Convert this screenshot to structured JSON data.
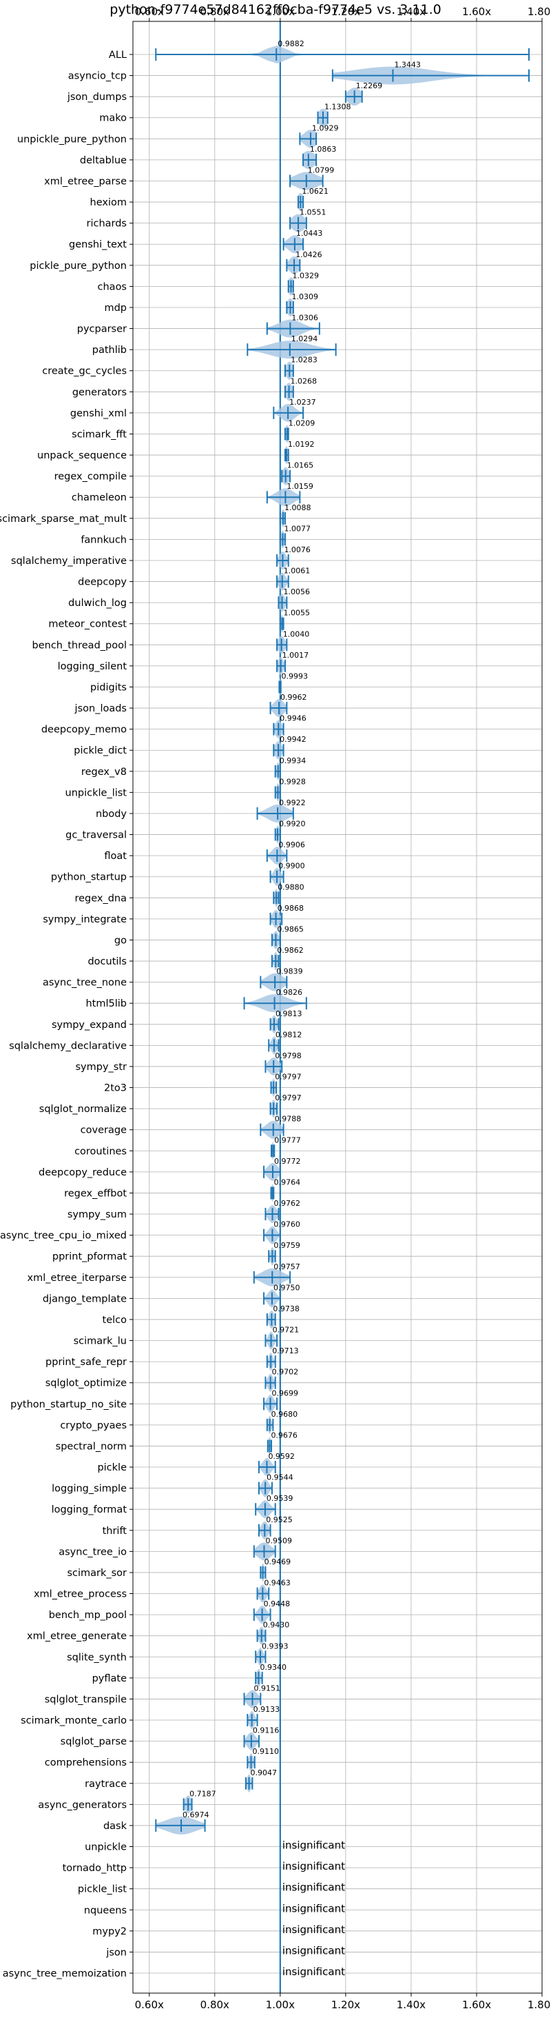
{
  "chart_data": {
    "type": "violin",
    "title": "python-f9774e57d84162ff0cba-f9774e5 vs. 3.11.0",
    "xlim": [
      0.55,
      1.8
    ],
    "xticks": [
      "0.60x",
      "0.80x",
      "1.00x",
      "1.20x",
      "1.40x",
      "1.60x",
      "1.80x"
    ],
    "xtick_values": [
      0.6,
      0.8,
      1.0,
      1.2,
      1.4,
      1.6,
      1.8
    ],
    "reference_line": 1.0,
    "grid": true,
    "colors": {
      "violin": "#a9c8e4",
      "line": "#1f77b4"
    },
    "insignificant_label": "insignificant",
    "benchmarks": [
      {
        "name": "ALL",
        "value": 0.9882,
        "label": "0.9882",
        "lo": 0.62,
        "hi": 1.76,
        "spread": 0.03
      },
      {
        "name": "asyncio_tcp",
        "value": 1.3443,
        "label": "1.3443",
        "lo": 1.16,
        "hi": 1.76,
        "spread": 0.12
      },
      {
        "name": "json_dumps",
        "value": 1.2269,
        "label": "1.2269",
        "lo": 1.2,
        "hi": 1.25,
        "spread": 0.02
      },
      {
        "name": "mako",
        "value": 1.1308,
        "label": "1.1308",
        "lo": 1.115,
        "hi": 1.145,
        "spread": 0.015
      },
      {
        "name": "unpickle_pure_python",
        "value": 1.0929,
        "label": "1.0929",
        "lo": 1.06,
        "hi": 1.11,
        "spread": 0.02
      },
      {
        "name": "deltablue",
        "value": 1.0863,
        "label": "1.0863",
        "lo": 1.07,
        "hi": 1.11,
        "spread": 0.02
      },
      {
        "name": "xml_etree_parse",
        "value": 1.0799,
        "label": "1.0799",
        "lo": 1.03,
        "hi": 1.13,
        "spread": 0.035
      },
      {
        "name": "hexiom",
        "value": 1.0621,
        "label": "1.0621",
        "lo": 1.055,
        "hi": 1.07,
        "spread": 0.01
      },
      {
        "name": "richards",
        "value": 1.0551,
        "label": "1.0551",
        "lo": 1.03,
        "hi": 1.08,
        "spread": 0.02
      },
      {
        "name": "genshi_text",
        "value": 1.0443,
        "label": "1.0443",
        "lo": 1.01,
        "hi": 1.07,
        "spread": 0.02
      },
      {
        "name": "pickle_pure_python",
        "value": 1.0426,
        "label": "1.0426",
        "lo": 1.02,
        "hi": 1.06,
        "spread": 0.015
      },
      {
        "name": "chaos",
        "value": 1.0329,
        "label": "1.0329",
        "lo": 1.025,
        "hi": 1.04,
        "spread": 0.01
      },
      {
        "name": "mdp",
        "value": 1.0309,
        "label": "1.0309",
        "lo": 1.02,
        "hi": 1.04,
        "spread": 0.01
      },
      {
        "name": "pycparser",
        "value": 1.0306,
        "label": "1.0306",
        "lo": 0.96,
        "hi": 1.12,
        "spread": 0.035
      },
      {
        "name": "pathlib",
        "value": 1.0294,
        "label": "1.0294",
        "lo": 0.9,
        "hi": 1.17,
        "spread": 0.06
      },
      {
        "name": "create_gc_cycles",
        "value": 1.0283,
        "label": "1.0283",
        "lo": 1.015,
        "hi": 1.04,
        "spread": 0.01
      },
      {
        "name": "generators",
        "value": 1.0268,
        "label": "1.0268",
        "lo": 1.015,
        "hi": 1.04,
        "spread": 0.01
      },
      {
        "name": "genshi_xml",
        "value": 1.0237,
        "label": "1.0237",
        "lo": 0.98,
        "hi": 1.07,
        "spread": 0.02
      },
      {
        "name": "scimark_fft",
        "value": 1.0209,
        "label": "1.0209",
        "lo": 1.015,
        "hi": 1.025,
        "spread": 0.005
      },
      {
        "name": "unpack_sequence",
        "value": 1.0192,
        "label": "1.0192",
        "lo": 1.015,
        "hi": 1.025,
        "spread": 0.005
      },
      {
        "name": "regex_compile",
        "value": 1.0165,
        "label": "1.0165",
        "lo": 1.005,
        "hi": 1.03,
        "spread": 0.01
      },
      {
        "name": "chameleon",
        "value": 1.0159,
        "label": "1.0159",
        "lo": 0.96,
        "hi": 1.06,
        "spread": 0.025
      },
      {
        "name": "scimark_sparse_mat_mult",
        "value": 1.0088,
        "label": "1.0088",
        "lo": 1.0,
        "hi": 1.015,
        "spread": 0.005
      },
      {
        "name": "fannkuch",
        "value": 1.0077,
        "label": "1.0077",
        "lo": 1.0,
        "hi": 1.015,
        "spread": 0.005
      },
      {
        "name": "sqlalchemy_imperative",
        "value": 1.0076,
        "label": "1.0076",
        "lo": 0.99,
        "hi": 1.025,
        "spread": 0.01
      },
      {
        "name": "deepcopy",
        "value": 1.0061,
        "label": "1.0061",
        "lo": 0.99,
        "hi": 1.025,
        "spread": 0.01
      },
      {
        "name": "dulwich_log",
        "value": 1.0056,
        "label": "1.0056",
        "lo": 0.995,
        "hi": 1.02,
        "spread": 0.008
      },
      {
        "name": "meteor_contest",
        "value": 1.0055,
        "label": "1.0055",
        "lo": 1.0,
        "hi": 1.01,
        "spread": 0.004
      },
      {
        "name": "bench_thread_pool",
        "value": 1.004,
        "label": "1.0040",
        "lo": 0.99,
        "hi": 1.02,
        "spread": 0.01
      },
      {
        "name": "logging_silent",
        "value": 1.0017,
        "label": "1.0017",
        "lo": 0.99,
        "hi": 1.015,
        "spread": 0.008
      },
      {
        "name": "pidigits",
        "value": 0.9993,
        "label": "0.9993",
        "lo": 0.997,
        "hi": 1.002,
        "spread": 0.002
      },
      {
        "name": "json_loads",
        "value": 0.9962,
        "label": "0.9962",
        "lo": 0.97,
        "hi": 1.02,
        "spread": 0.015
      },
      {
        "name": "deepcopy_memo",
        "value": 0.9946,
        "label": "0.9946",
        "lo": 0.98,
        "hi": 1.01,
        "spread": 0.01
      },
      {
        "name": "pickle_dict",
        "value": 0.9942,
        "label": "0.9942",
        "lo": 0.98,
        "hi": 1.01,
        "spread": 0.01
      },
      {
        "name": "regex_v8",
        "value": 0.9934,
        "label": "0.9934",
        "lo": 0.985,
        "hi": 1.0,
        "spread": 0.005
      },
      {
        "name": "unpickle_list",
        "value": 0.9928,
        "label": "0.9928",
        "lo": 0.985,
        "hi": 1.0,
        "spread": 0.005
      },
      {
        "name": "nbody",
        "value": 0.9922,
        "label": "0.9922",
        "lo": 0.93,
        "hi": 1.04,
        "spread": 0.03
      },
      {
        "name": "gc_traversal",
        "value": 0.992,
        "label": "0.9920",
        "lo": 0.985,
        "hi": 1.0,
        "spread": 0.005
      },
      {
        "name": "float",
        "value": 0.9906,
        "label": "0.9906",
        "lo": 0.96,
        "hi": 1.02,
        "spread": 0.015
      },
      {
        "name": "python_startup",
        "value": 0.99,
        "label": "0.9900",
        "lo": 0.97,
        "hi": 1.01,
        "spread": 0.01
      },
      {
        "name": "regex_dna",
        "value": 0.988,
        "label": "0.9880",
        "lo": 0.98,
        "hi": 0.995,
        "spread": 0.005
      },
      {
        "name": "sympy_integrate",
        "value": 0.9868,
        "label": "0.9868",
        "lo": 0.97,
        "hi": 1.005,
        "spread": 0.01
      },
      {
        "name": "go",
        "value": 0.9865,
        "label": "0.9865",
        "lo": 0.975,
        "hi": 1.0,
        "spread": 0.008
      },
      {
        "name": "docutils",
        "value": 0.9862,
        "label": "0.9862",
        "lo": 0.975,
        "hi": 0.995,
        "spread": 0.006
      },
      {
        "name": "async_tree_none",
        "value": 0.9839,
        "label": "0.9839",
        "lo": 0.94,
        "hi": 1.02,
        "spread": 0.025
      },
      {
        "name": "html5lib",
        "value": 0.9826,
        "label": "0.9826",
        "lo": 0.89,
        "hi": 1.08,
        "spread": 0.04
      },
      {
        "name": "sympy_expand",
        "value": 0.9813,
        "label": "0.9813",
        "lo": 0.97,
        "hi": 0.995,
        "spread": 0.008
      },
      {
        "name": "sqlalchemy_declarative",
        "value": 0.9812,
        "label": "0.9812",
        "lo": 0.965,
        "hi": 0.995,
        "spread": 0.008
      },
      {
        "name": "sympy_str",
        "value": 0.9798,
        "label": "0.9798",
        "lo": 0.955,
        "hi": 1.005,
        "spread": 0.015
      },
      {
        "name": "2to3",
        "value": 0.9797,
        "label": "0.9797",
        "lo": 0.972,
        "hi": 0.988,
        "spread": 0.005
      },
      {
        "name": "sqlglot_normalize",
        "value": 0.9797,
        "label": "0.9797",
        "lo": 0.97,
        "hi": 0.99,
        "spread": 0.006
      },
      {
        "name": "coverage",
        "value": 0.9788,
        "label": "0.9788",
        "lo": 0.94,
        "hi": 1.01,
        "spread": 0.02
      },
      {
        "name": "coroutines",
        "value": 0.9777,
        "label": "0.9777",
        "lo": 0.973,
        "hi": 0.982,
        "spread": 0.003
      },
      {
        "name": "deepcopy_reduce",
        "value": 0.9772,
        "label": "0.9772",
        "lo": 0.95,
        "hi": 1.0,
        "spread": 0.015
      },
      {
        "name": "regex_effbot",
        "value": 0.9764,
        "label": "0.9764",
        "lo": 0.972,
        "hi": 0.98,
        "spread": 0.003
      },
      {
        "name": "sympy_sum",
        "value": 0.9762,
        "label": "0.9762",
        "lo": 0.955,
        "hi": 0.995,
        "spread": 0.012
      },
      {
        "name": "async_tree_cpu_io_mixed",
        "value": 0.976,
        "label": "0.9760",
        "lo": 0.95,
        "hi": 1.0,
        "spread": 0.012
      },
      {
        "name": "pprint_pformat",
        "value": 0.9759,
        "label": "0.9759",
        "lo": 0.965,
        "hi": 0.985,
        "spread": 0.006
      },
      {
        "name": "xml_etree_iterparse",
        "value": 0.9757,
        "label": "0.9757",
        "lo": 0.92,
        "hi": 1.03,
        "spread": 0.03
      },
      {
        "name": "django_template",
        "value": 0.975,
        "label": "0.9750",
        "lo": 0.95,
        "hi": 1.0,
        "spread": 0.012
      },
      {
        "name": "telco",
        "value": 0.9738,
        "label": "0.9738",
        "lo": 0.96,
        "hi": 0.985,
        "spread": 0.008
      },
      {
        "name": "scimark_lu",
        "value": 0.9721,
        "label": "0.9721",
        "lo": 0.955,
        "hi": 0.99,
        "spread": 0.008
      },
      {
        "name": "pprint_safe_repr",
        "value": 0.9713,
        "label": "0.9713",
        "lo": 0.96,
        "hi": 0.985,
        "spread": 0.006
      },
      {
        "name": "sqlglot_optimize",
        "value": 0.9702,
        "label": "0.9702",
        "lo": 0.955,
        "hi": 0.985,
        "spread": 0.008
      },
      {
        "name": "python_startup_no_site",
        "value": 0.9699,
        "label": "0.9699",
        "lo": 0.95,
        "hi": 0.99,
        "spread": 0.01
      },
      {
        "name": "crypto_pyaes",
        "value": 0.968,
        "label": "0.9680",
        "lo": 0.96,
        "hi": 0.978,
        "spread": 0.005
      },
      {
        "name": "spectral_norm",
        "value": 0.9676,
        "label": "0.9676",
        "lo": 0.962,
        "hi": 0.973,
        "spread": 0.004
      },
      {
        "name": "pickle",
        "value": 0.9592,
        "label": "0.9592",
        "lo": 0.935,
        "hi": 0.985,
        "spread": 0.012
      },
      {
        "name": "logging_simple",
        "value": 0.9544,
        "label": "0.9544",
        "lo": 0.935,
        "hi": 0.975,
        "spread": 0.01
      },
      {
        "name": "logging_format",
        "value": 0.9539,
        "label": "0.9539",
        "lo": 0.925,
        "hi": 0.985,
        "spread": 0.014
      },
      {
        "name": "thrift",
        "value": 0.9525,
        "label": "0.9525",
        "lo": 0.935,
        "hi": 0.97,
        "spread": 0.01
      },
      {
        "name": "async_tree_io",
        "value": 0.9509,
        "label": "0.9509",
        "lo": 0.92,
        "hi": 0.985,
        "spread": 0.02
      },
      {
        "name": "scimark_sor",
        "value": 0.9469,
        "label": "0.9469",
        "lo": 0.94,
        "hi": 0.955,
        "spread": 0.005
      },
      {
        "name": "xml_etree_process",
        "value": 0.9463,
        "label": "0.9463",
        "lo": 0.93,
        "hi": 0.965,
        "spread": 0.01
      },
      {
        "name": "bench_mp_pool",
        "value": 0.9448,
        "label": "0.9448",
        "lo": 0.92,
        "hi": 0.97,
        "spread": 0.012
      },
      {
        "name": "xml_etree_generate",
        "value": 0.943,
        "label": "0.9430",
        "lo": 0.93,
        "hi": 0.955,
        "spread": 0.008
      },
      {
        "name": "sqlite_synth",
        "value": 0.9393,
        "label": "0.9393",
        "lo": 0.925,
        "hi": 0.955,
        "spread": 0.008
      },
      {
        "name": "pyflate",
        "value": 0.934,
        "label": "0.9340",
        "lo": 0.925,
        "hi": 0.945,
        "spread": 0.006
      },
      {
        "name": "sqlglot_transpile",
        "value": 0.9151,
        "label": "0.9151",
        "lo": 0.89,
        "hi": 0.94,
        "spread": 0.015
      },
      {
        "name": "scimark_monte_carlo",
        "value": 0.9133,
        "label": "0.9133",
        "lo": 0.9,
        "hi": 0.93,
        "spread": 0.008
      },
      {
        "name": "sqlglot_parse",
        "value": 0.9116,
        "label": "0.9116",
        "lo": 0.89,
        "hi": 0.935,
        "spread": 0.012
      },
      {
        "name": "comprehensions",
        "value": 0.911,
        "label": "0.9110",
        "lo": 0.9,
        "hi": 0.922,
        "spread": 0.006
      },
      {
        "name": "raytrace",
        "value": 0.9047,
        "label": "0.9047",
        "lo": 0.895,
        "hi": 0.915,
        "spread": 0.006
      },
      {
        "name": "async_generators",
        "value": 0.7187,
        "label": "0.7187",
        "lo": 0.705,
        "hi": 0.73,
        "spread": 0.01
      },
      {
        "name": "dask",
        "value": 0.6974,
        "label": "0.6974",
        "lo": 0.62,
        "hi": 0.77,
        "spread": 0.045
      },
      {
        "name": "unpickle",
        "insignificant": true
      },
      {
        "name": "tornado_http",
        "insignificant": true
      },
      {
        "name": "pickle_list",
        "insignificant": true
      },
      {
        "name": "nqueens",
        "insignificant": true
      },
      {
        "name": "mypy2",
        "insignificant": true
      },
      {
        "name": "json",
        "insignificant": true
      },
      {
        "name": "async_tree_memoization",
        "insignificant": true
      }
    ]
  }
}
